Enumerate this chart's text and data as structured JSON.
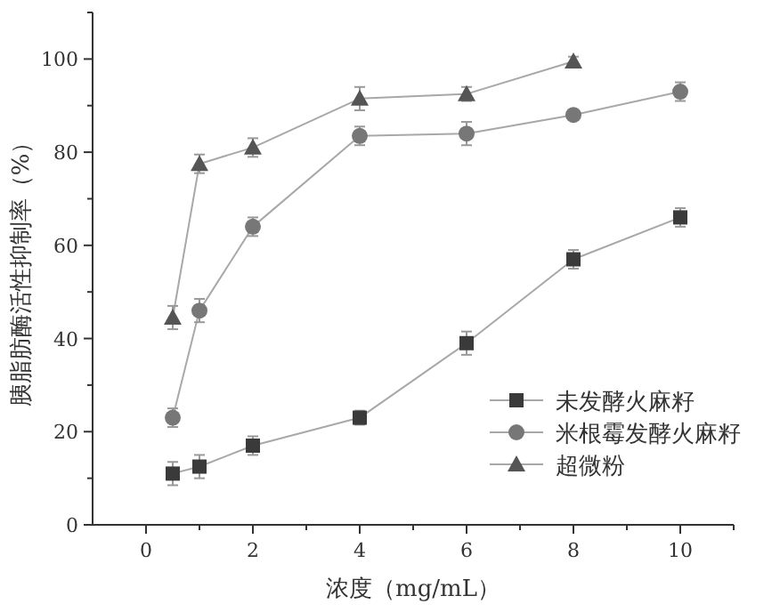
{
  "chart_data": {
    "type": "line",
    "xlabel": "浓度（mg/mL）",
    "ylabel": "胰脂肪酶活性抑制率（%）",
    "xlim": [
      -1,
      11
    ],
    "ylim": [
      0,
      110
    ],
    "xticks": [
      0,
      {
        "value": 1,
        "label": null
      },
      2,
      {
        "value": 3,
        "label": null
      },
      4,
      {
        "value": 5,
        "label": null
      },
      6,
      {
        "value": 7,
        "label": null
      },
      8,
      {
        "value": 9,
        "label": null
      },
      10,
      {
        "value": 11,
        "label": null
      }
    ],
    "yticks": [
      0,
      {
        "value": 10,
        "label": null
      },
      20,
      {
        "value": 30,
        "label": null
      },
      40,
      {
        "value": 50,
        "label": null
      },
      60,
      {
        "value": 70,
        "label": null
      },
      80,
      {
        "value": 90,
        "label": null
      },
      100,
      {
        "value": 110,
        "label": null
      }
    ],
    "legend": "bottom right",
    "grid": false,
    "series": [
      {
        "name": "未发酵火麻籽",
        "color": "#3a3a3a",
        "marker": "square",
        "x": [
          0.5,
          1,
          2,
          4,
          6,
          8,
          10
        ],
        "values": [
          11,
          12.5,
          17,
          23,
          39,
          57,
          66
        ],
        "errors": [
          2.5,
          2.5,
          2,
          1.5,
          2.5,
          2,
          2
        ]
      },
      {
        "name": "米根霉发酵火麻籽",
        "color": "#777777",
        "marker": "circle",
        "x": [
          0.5,
          1,
          2,
          4,
          6,
          8,
          10
        ],
        "values": [
          23,
          46,
          64,
          83.5,
          84,
          88,
          93
        ],
        "errors": [
          2,
          2.5,
          2,
          2,
          2.5,
          1,
          2
        ]
      },
      {
        "name": "超微粉",
        "color": "#555555",
        "marker": "triangle",
        "x": [
          0.5,
          1,
          2,
          4,
          6,
          8
        ],
        "values": [
          44.5,
          77.5,
          81,
          91.5,
          92.5,
          99.5
        ],
        "errors": [
          2.5,
          2,
          2,
          2.5,
          1.5,
          1
        ]
      }
    ]
  }
}
